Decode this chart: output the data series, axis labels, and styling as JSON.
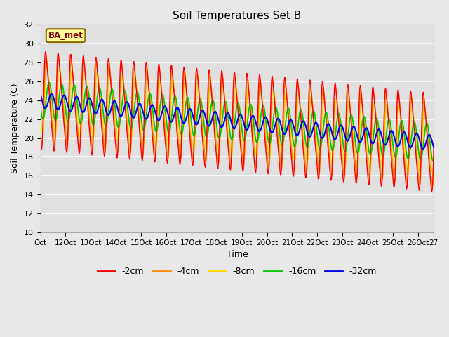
{
  "title": "Soil Temperatures Set B",
  "xlabel": "Time",
  "ylabel": "Soil Temperature (C)",
  "ylim": [
    10,
    32
  ],
  "yticks": [
    10,
    12,
    14,
    16,
    18,
    20,
    22,
    24,
    26,
    28,
    30,
    32
  ],
  "xlim_start": 0,
  "xlim_end": 375,
  "xtick_positions": [
    0,
    24,
    48,
    72,
    96,
    120,
    144,
    168,
    192,
    216,
    240,
    264,
    288,
    312,
    336,
    360,
    375
  ],
  "xtick_labels": [
    "Oct",
    "12Oct",
    "13Oct",
    "14Oct",
    "15Oct",
    "16Oct",
    "17Oct",
    "18Oct",
    "19Oct",
    "20Oct",
    "21Oct",
    "22Oct",
    "23Oct",
    "24Oct",
    "25Oct",
    "26Oct",
    "27"
  ],
  "colors": {
    "-2cm": "#ff0000",
    "-4cm": "#ff8800",
    "-8cm": "#ffdd00",
    "-16cm": "#00cc00",
    "-32cm": "#0000ee"
  },
  "legend_label_bg": "#ffff99",
  "legend_label_text": "#880000",
  "legend_label_border": "#886600",
  "legend_label": "BA_met",
  "background_color": "#e8e8e8",
  "plot_bg": "#e0e0e0",
  "grid_color": "#ffffff",
  "period_hours": 12,
  "n_points": 750,
  "base_temp_start": 24.0,
  "base_temp_end": 19.5,
  "amplitude_2cm": 6.5,
  "amplitude_4cm": 5.8,
  "amplitude_8cm": 4.5,
  "amplitude_16cm": 2.0,
  "amplitude_32cm": 0.8,
  "phase_2cm": 1.57,
  "phase_4cm": 1.87,
  "phase_8cm": 2.2,
  "phase_16cm": 2.8,
  "phase_32cm": 4.0,
  "linewidth_shallow": 1.0,
  "linewidth_deep": 1.5
}
